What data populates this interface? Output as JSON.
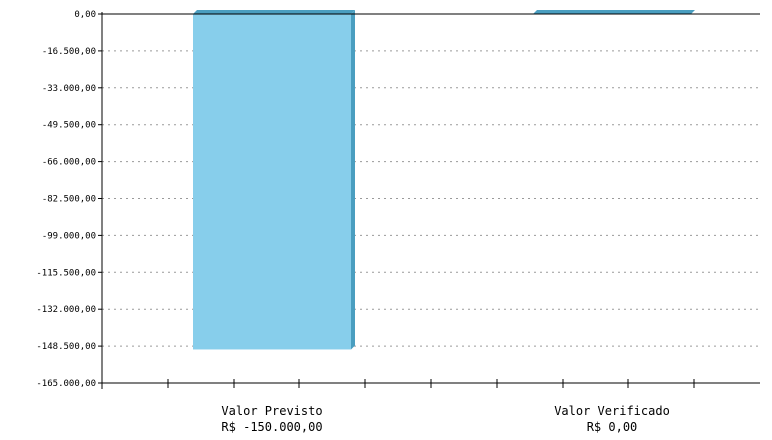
{
  "chart_data": {
    "type": "bar",
    "title": "",
    "xlabel": "",
    "ylabel": "",
    "ylim": [
      -165000,
      0
    ],
    "yticks": [
      0,
      -16500,
      -33000,
      -49500,
      -66000,
      -82500,
      -99000,
      -115500,
      -132000,
      -148500,
      -165000
    ],
    "ytick_labels": [
      "0,00",
      "-16.500,00",
      "-33.000,00",
      "-49.500,00",
      "-66.000,00",
      "-82.500,00",
      "-99.000,00",
      "-115.500,00",
      "-132.000,00",
      "-148.500,00",
      "-165.000,00"
    ],
    "grid": true,
    "categories": [
      "Valor Previsto",
      "Valor Verificado"
    ],
    "value_labels": [
      "R$ -150.000,00",
      "R$ 0,00"
    ],
    "values": [
      -150000,
      0
    ],
    "colors": {
      "bar_face": "#87ceeb",
      "bar_side": "#4a9ec0",
      "grid": "#9a9a9a",
      "axis": "#000000"
    }
  }
}
